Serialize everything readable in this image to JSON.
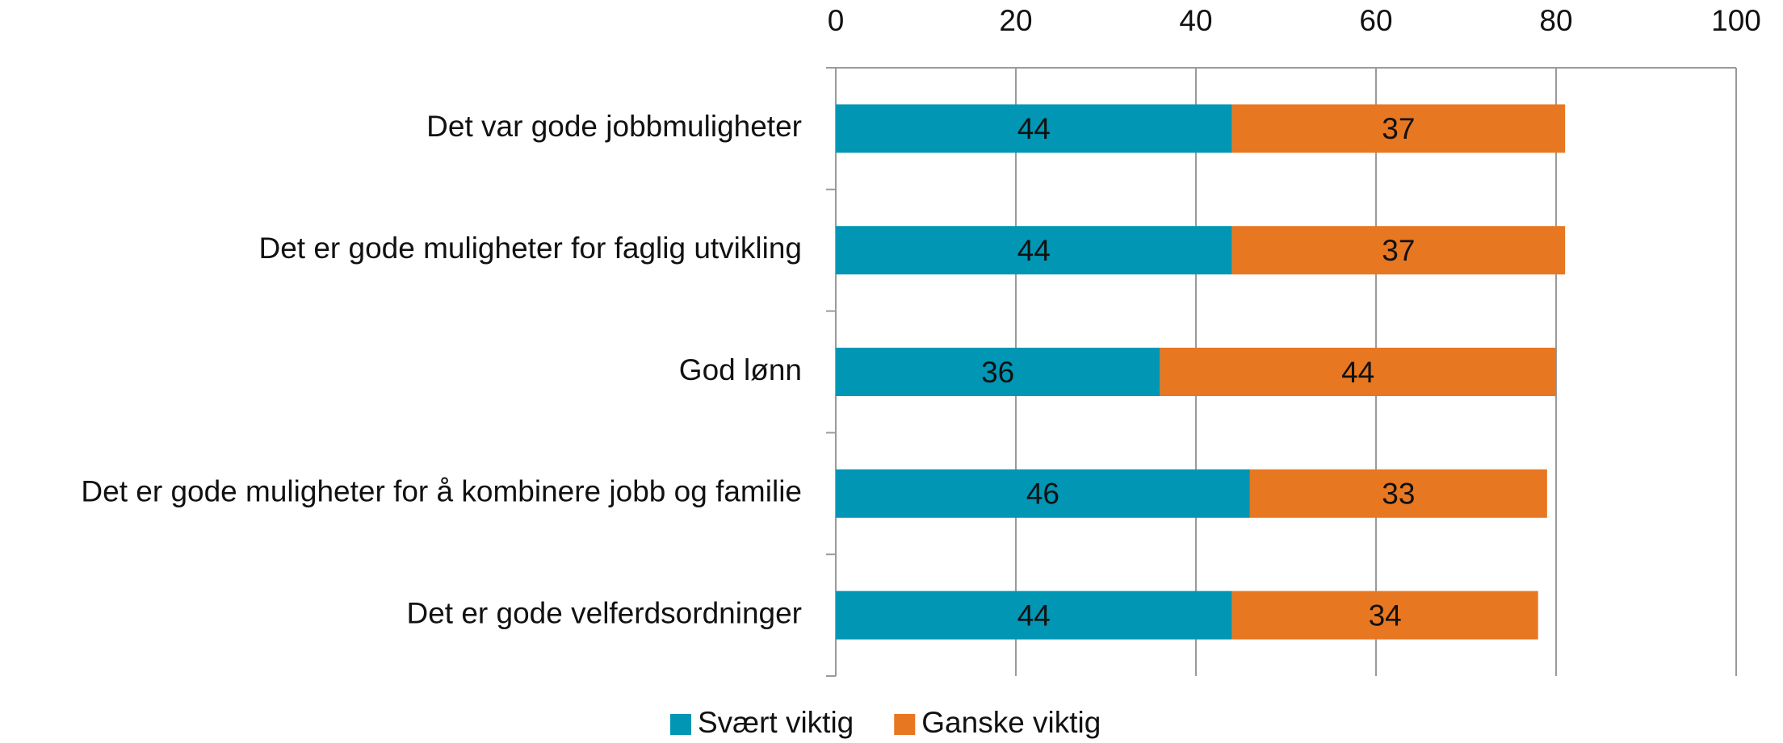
{
  "chart_data": {
    "type": "bar",
    "orientation": "horizontal",
    "stacked": true,
    "categories": [
      "Det var gode jobbmuligheter",
      "Det er gode muligheter for faglig utvikling",
      "God lønn",
      "Det er gode muligheter for å kombinere jobb og familie",
      "Det er gode velferdsordninger"
    ],
    "series": [
      {
        "name": "Svært viktig",
        "color": "#0096b4",
        "values": [
          44,
          44,
          36,
          46,
          44
        ]
      },
      {
        "name": "Ganske viktig",
        "color": "#e87722",
        "values": [
          37,
          37,
          44,
          33,
          34
        ]
      }
    ],
    "xlim": [
      0,
      100
    ],
    "xticks": [
      0,
      20,
      40,
      60,
      80,
      100
    ],
    "xaxis_position": "top",
    "grid": true,
    "legend": "bottom"
  }
}
